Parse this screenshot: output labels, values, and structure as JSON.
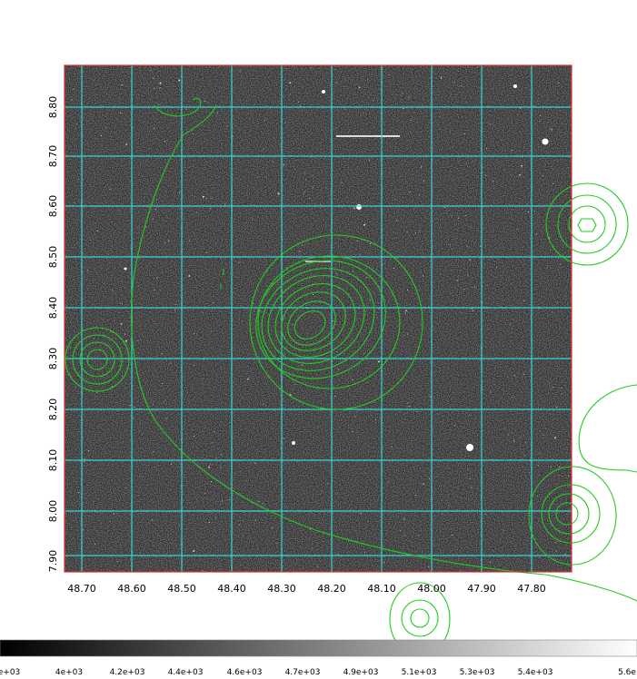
{
  "image": {
    "description_free": true,
    "colormap": "gray"
  },
  "axes": {
    "x_tick_labels": [
      "48.70",
      "48.60",
      "48.50",
      "48.40",
      "48.30",
      "48.20",
      "48.10",
      "48.00",
      "47.90",
      "47.80"
    ],
    "y_tick_labels": [
      "8.80",
      "8.70",
      "8.60",
      "8.50",
      "8.40",
      "8.30",
      "8.20",
      "8.10",
      "8.00",
      "7.90"
    ]
  },
  "colorbar": {
    "labels": [
      "e+03",
      "4e+03",
      "4.2e+03",
      "4.4e+03",
      "4.6e+03",
      "4.7e+03",
      "4.9e+03",
      "5.1e+03",
      "5.3e+03",
      "5.4e+03",
      "5.6e"
    ]
  },
  "colors": {
    "grid": "#33d6d6",
    "contour": "#22cc22",
    "frame": "#e03030"
  }
}
